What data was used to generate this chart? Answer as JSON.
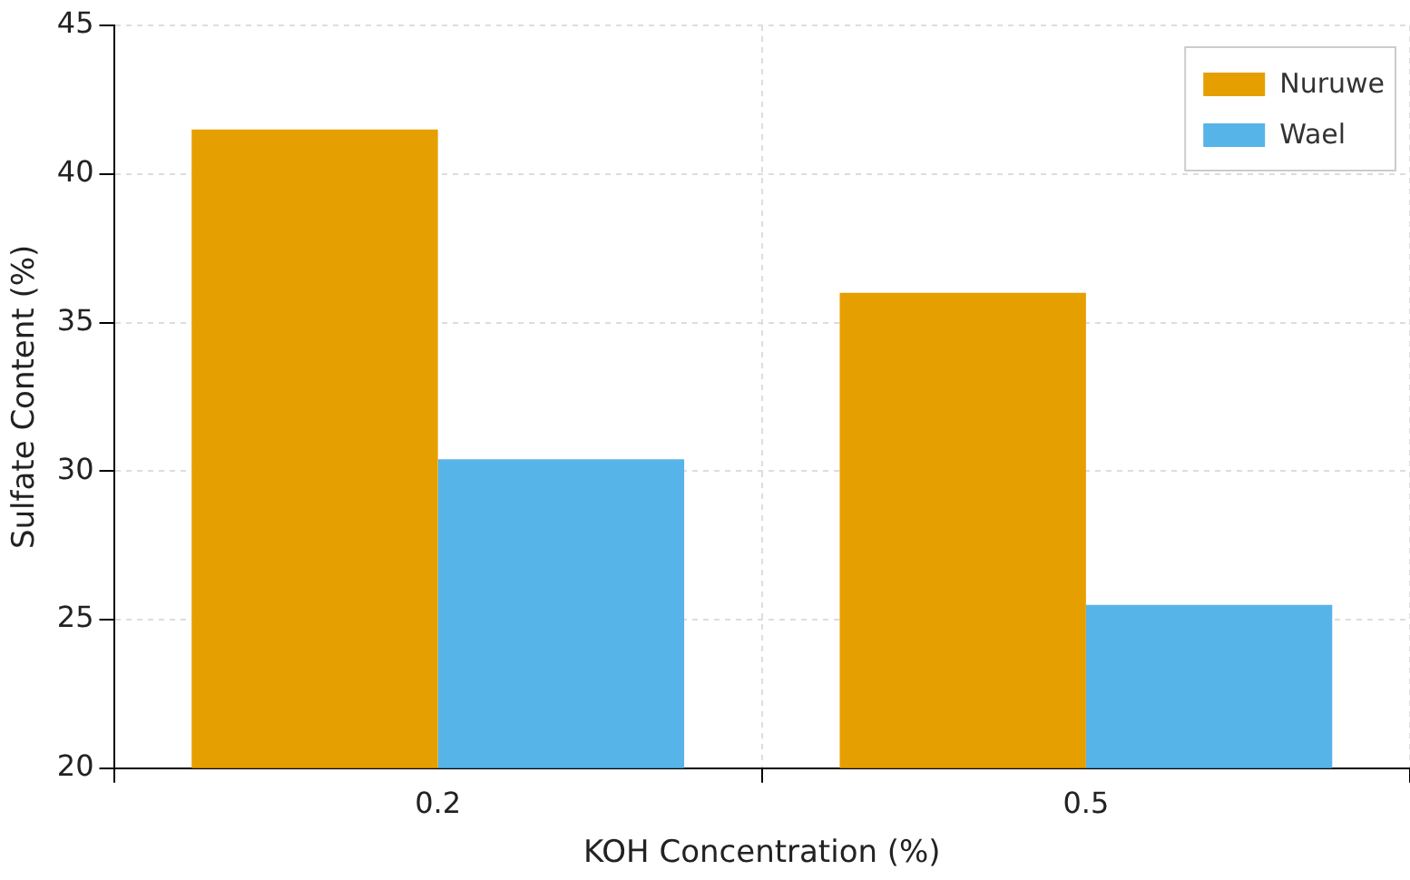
{
  "chart_data": {
    "type": "bar",
    "xlabel": "KOH Concentration (%)",
    "ylabel": "Sulfate Content (%)",
    "categories": [
      "0.2",
      "0.5"
    ],
    "series": [
      {
        "name": "Nuruwe",
        "color": "#e69f00",
        "values": [
          41.5,
          36.0
        ]
      },
      {
        "name": "Wael",
        "color": "#56b4e9",
        "values": [
          30.4,
          25.5
        ]
      }
    ],
    "ylim": [
      20,
      45
    ],
    "yticks": [
      20,
      25,
      30,
      35,
      40,
      45
    ],
    "grid": true,
    "legend": "top right"
  }
}
